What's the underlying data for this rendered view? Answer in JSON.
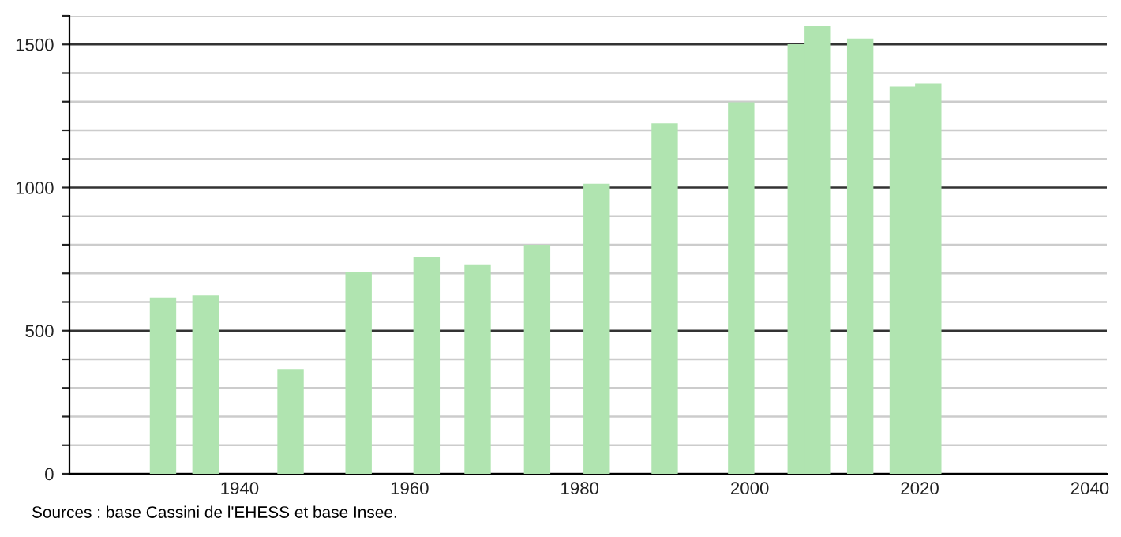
{
  "chart_data": {
    "type": "bar",
    "x": [
      1931,
      1936,
      1946,
      1954,
      1962,
      1968,
      1975,
      1982,
      1990,
      1999,
      2006,
      2008,
      2013,
      2018,
      2021
    ],
    "values": [
      616,
      623,
      366,
      704,
      756,
      732,
      800,
      1013,
      1224,
      1298,
      1501,
      1564,
      1521,
      1353,
      1364
    ],
    "color": "#b0e4b0",
    "xlim": [
      1920,
      2042
    ],
    "xticks": [
      1940,
      1960,
      1980,
      2000,
      2020,
      2040
    ],
    "ylim": [
      0,
      1600
    ],
    "yticks": [
      0,
      {
        "value": 100,
        "label": null
      },
      {
        "value": 200,
        "label": null
      },
      {
        "value": 300,
        "label": null
      },
      {
        "value": 400,
        "label": null
      },
      500,
      {
        "value": 600,
        "label": null
      },
      {
        "value": 700,
        "label": null
      },
      {
        "value": 800,
        "label": null
      },
      {
        "value": 900,
        "label": null
      },
      1000,
      {
        "value": 1100,
        "label": null
      },
      {
        "value": 1200,
        "label": null
      },
      {
        "value": 1300,
        "label": null
      },
      {
        "value": 1400,
        "label": null
      },
      1500,
      {
        "value": 1600,
        "label": null
      }
    ],
    "grid": "y",
    "annotations": [
      "Sources : base Cassini de l'EHESS et base Insee."
    ]
  }
}
